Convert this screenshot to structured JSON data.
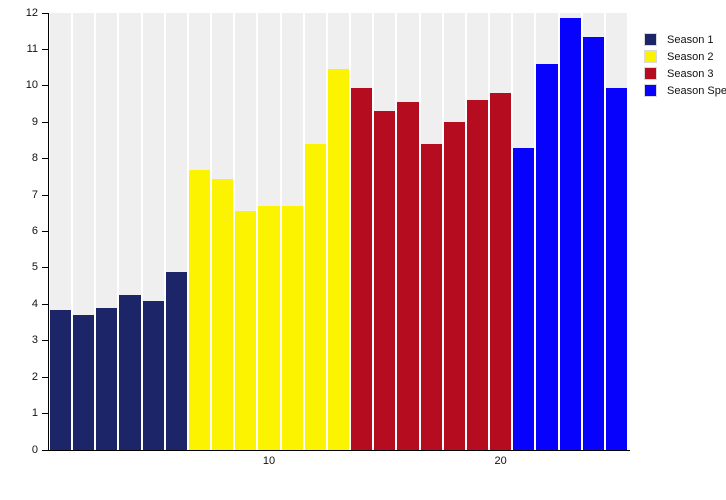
{
  "chart_data": {
    "type": "bar",
    "title": "",
    "xlabel": "",
    "ylabel": "",
    "ylim": [
      0,
      12
    ],
    "y_ticks": [
      0,
      1,
      2,
      3,
      4,
      5,
      6,
      7,
      8,
      9,
      10,
      11,
      12
    ],
    "x_ticks": [
      10,
      20
    ],
    "grid": "off",
    "slot_background_color": "#efefef",
    "axis_color": "#000000",
    "legend_position": "top-right",
    "series": [
      {
        "name": "Season 1",
        "color": "#1B2567",
        "episodes": [
          1,
          2,
          3,
          4,
          5,
          6
        ],
        "values": [
          3.85,
          3.7,
          3.9,
          4.25,
          4.1,
          4.9
        ]
      },
      {
        "name": "Season 2",
        "color": "#FBF300",
        "episodes": [
          7,
          8,
          9,
          10,
          11,
          12,
          13
        ],
        "values": [
          7.7,
          7.45,
          6.55,
          6.7,
          6.7,
          8.4,
          10.45
        ]
      },
      {
        "name": "Season 3",
        "color": "#B60C1F",
        "episodes": [
          14,
          15,
          16,
          17,
          18,
          19,
          20
        ],
        "values": [
          9.95,
          9.3,
          9.55,
          8.4,
          9.0,
          9.6,
          9.8
        ]
      },
      {
        "name": "Season Specials",
        "color": "#0702FB",
        "episodes": [
          21,
          22,
          23,
          24,
          25
        ],
        "values": [
          8.3,
          10.6,
          11.85,
          11.35,
          9.95
        ]
      }
    ]
  },
  "legend": {
    "items": [
      {
        "label": "Season 1"
      },
      {
        "label": "Season 2"
      },
      {
        "label": "Season 3"
      },
      {
        "label": "Season Specials"
      }
    ]
  }
}
